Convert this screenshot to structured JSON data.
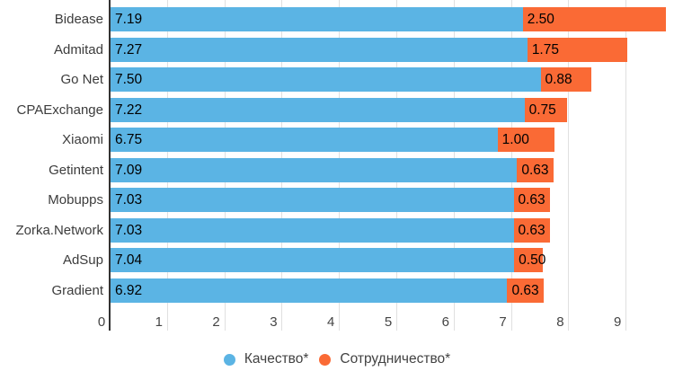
{
  "chart_data": {
    "type": "bar",
    "orientation": "horizontal",
    "stacked": true,
    "categories": [
      "Bidease",
      "Admitad",
      "Go Net",
      "CPAExchange",
      "Xiaomi",
      "Getintent",
      "Mobupps",
      "Zorka.Network",
      "AdSup",
      "Gradient"
    ],
    "series": [
      {
        "name": "Качество*",
        "color": "#5BB4E4",
        "values": [
          7.19,
          7.27,
          7.5,
          7.22,
          6.75,
          7.09,
          7.03,
          7.03,
          7.04,
          6.92
        ]
      },
      {
        "name": "Сотрудничество*",
        "color": "#FA6A35",
        "values": [
          2.5,
          1.75,
          0.88,
          0.75,
          1.0,
          0.63,
          0.63,
          0.63,
          0.5,
          0.63
        ]
      }
    ],
    "totals": [
      9.69,
      9.02,
      8.38,
      7.97,
      7.75,
      7.72,
      7.66,
      7.66,
      7.54,
      7.55
    ],
    "x_ticks": [
      "0",
      "1",
      "2",
      "3",
      "4",
      "5",
      "6",
      "7",
      "8",
      "9"
    ],
    "xlim": [
      0,
      9.84
    ],
    "grid": true,
    "value_labels_shown": true,
    "value_label_decimals": 2,
    "legend_position": "bottom"
  },
  "colors": {
    "background": "#ffffff",
    "axis_line": "#333333",
    "gridline": "#e0e0e0",
    "category_label": "#3c3c3c",
    "tick_label": "#444444",
    "value_label": "#000000",
    "legend_label": "#424242"
  }
}
